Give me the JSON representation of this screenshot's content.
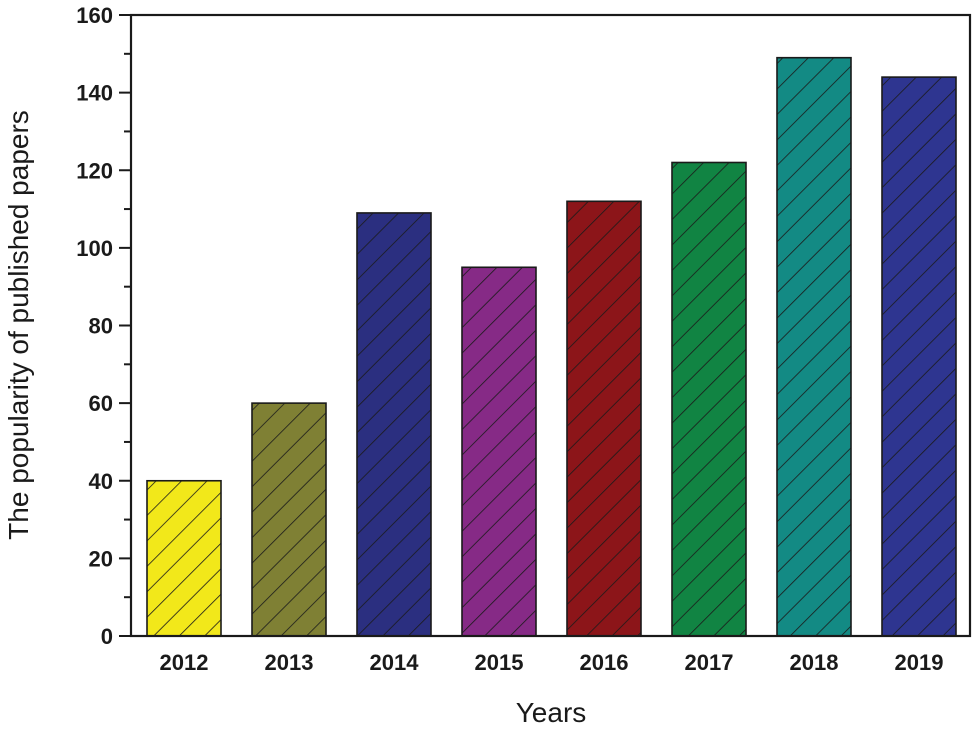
{
  "chart_data": {
    "type": "bar",
    "title": "",
    "xlabel": "Years",
    "ylabel": "The popularity of published papers",
    "categories": [
      "2012",
      "2013",
      "2014",
      "2015",
      "2016",
      "2017",
      "2018",
      "2019"
    ],
    "values": [
      40,
      60,
      109,
      95,
      112,
      122,
      149,
      144
    ],
    "colors": [
      "#f2e81a",
      "#7f8034",
      "#2b2f80",
      "#862a86",
      "#8c1519",
      "#118443",
      "#138a84",
      "#2e3590"
    ],
    "pattern": "diagonal-hatch",
    "ylim": [
      0,
      160
    ],
    "yticks": [
      0,
      20,
      40,
      60,
      80,
      100,
      120,
      140,
      160
    ],
    "yminor_step": 10,
    "grid": false,
    "legend": null
  }
}
